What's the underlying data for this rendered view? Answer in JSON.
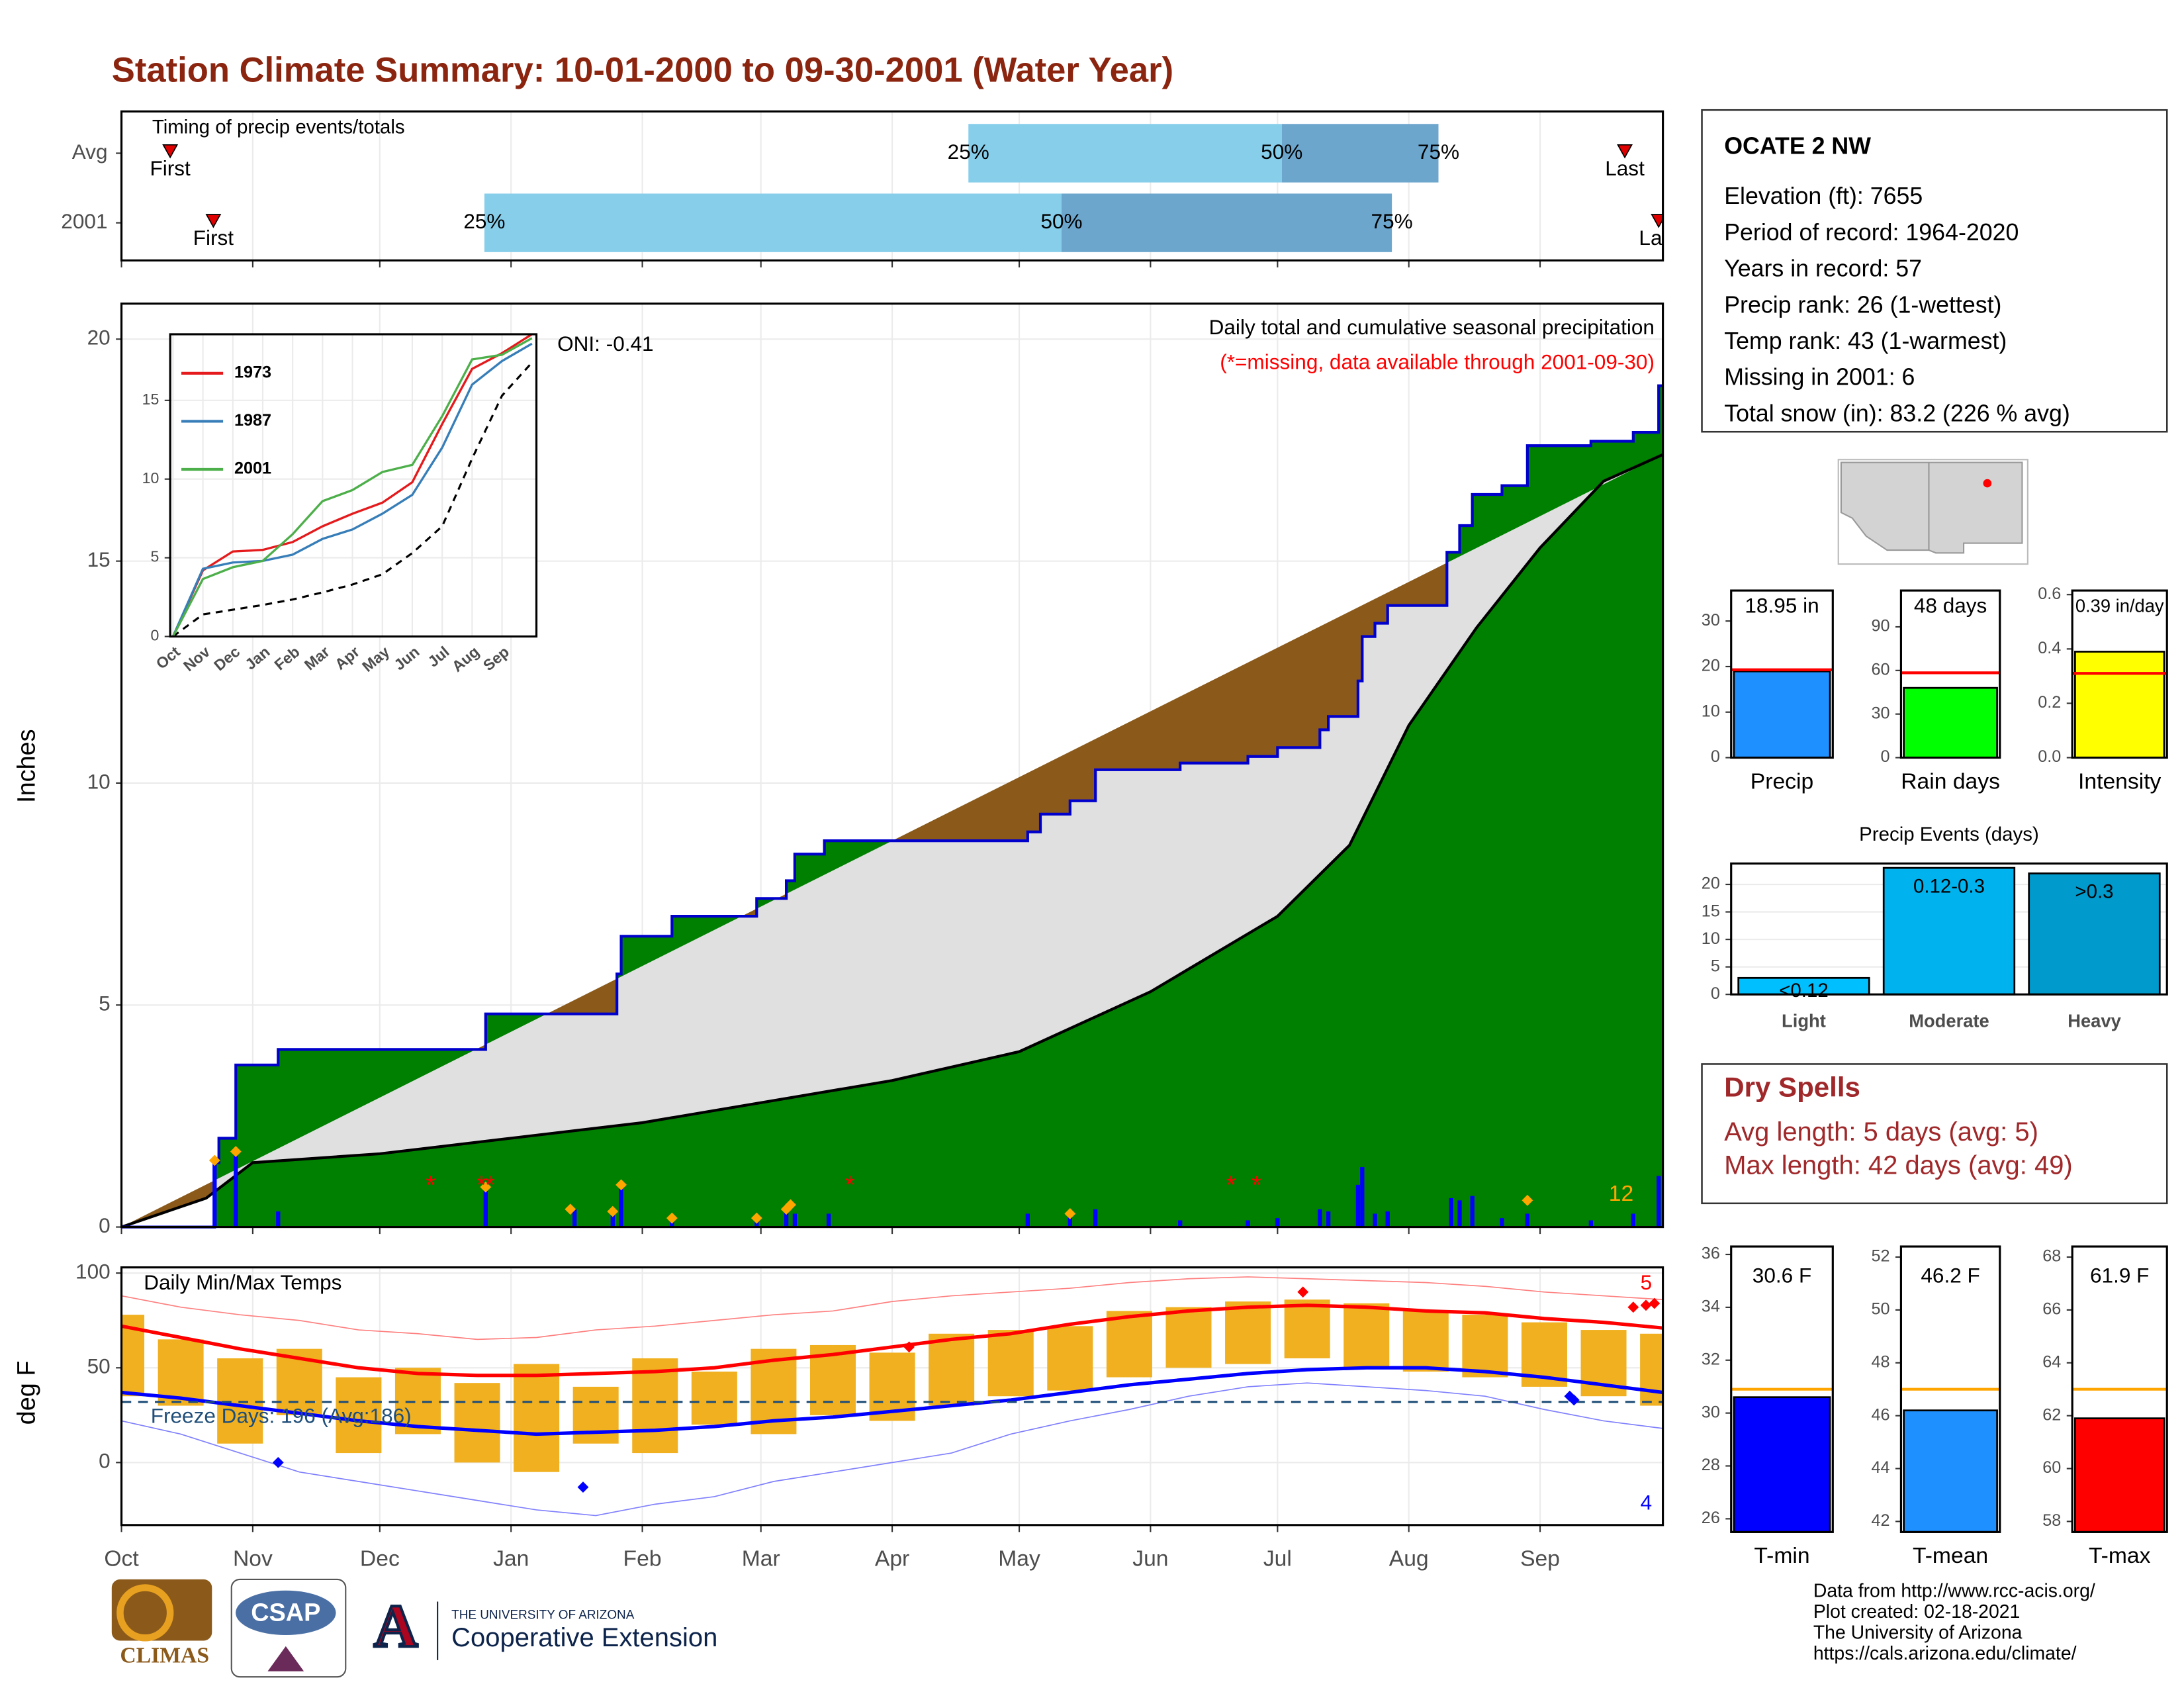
{
  "title": "Station Climate Summary: 10-01-2000 to 09-30-2001 (Water Year)",
  "station": {
    "name": "OCATE 2 NW",
    "lines": [
      "Elevation (ft): 7655",
      "Period of record: 1964-2020",
      "Years in record: 57",
      "Precip rank: 26 (1-wettest)",
      "Temp rank: 43 (1-warmest)",
      "Missing in 2001: 6",
      "Total snow (in): 83.2 (226 % avg)"
    ]
  },
  "dry_spells": {
    "title": "Dry Spells",
    "lines": [
      "Avg length: 5 days (avg: 5)",
      "Max length: 42 days (avg: 49)"
    ]
  },
  "footer": {
    "lines": [
      "Data from http://www.rcc-acis.org/",
      "Plot created: 02-18-2021",
      "The University of Arizona",
      "https://cals.arizona.edu/climate/"
    ]
  },
  "logos": {
    "climas": "CLIMAS",
    "csap": "CSAP",
    "university": "THE UNIVERSITY OF ARIZONA",
    "extension": "Cooperative Extension"
  },
  "chart_data": [
    {
      "type": "timeline",
      "title": "Timing of precip events/totals",
      "xlim": [
        0,
        364
      ],
      "categories": [
        "Avg",
        "2001"
      ],
      "first": [
        11.5,
        21.7
      ],
      "p25": [
        200,
        85.7
      ],
      "p50": [
        274,
        222
      ],
      "p75": [
        311,
        300
      ],
      "last": [
        355,
        363
      ],
      "labels": {
        "first": "First",
        "last": "Last",
        "p25": "25%",
        "p50": "50%",
        "p75": "75%"
      },
      "colors": {
        "low": "#87ceeb",
        "high": "#6ca6cd",
        "marker": "#e00000"
      }
    },
    {
      "type": "area",
      "title": "Daily total and cumulative seasonal precipitation",
      "subtitle": "(*=missing, data available through 2001-09-30)",
      "annotation": "ONI: -0.41",
      "ylabel": "Inches",
      "xlim": [
        0,
        364
      ],
      "ylim": [
        0,
        20.8
      ],
      "yticks": [
        0,
        5,
        10,
        15,
        20
      ],
      "grid": true,
      "average": {
        "color": "#e0e0e0",
        "deficit_color": "#8b5a1a",
        "x": [
          0,
          20,
          31,
          61,
          92,
          123,
          151,
          182,
          212,
          243,
          273,
          290,
          304,
          320,
          335,
          350,
          364
        ],
        "values": [
          0,
          0.65,
          1.45,
          1.65,
          2.0,
          2.35,
          2.8,
          3.3,
          3.95,
          5.3,
          7.0,
          8.6,
          11.3,
          13.5,
          15.3,
          16.8,
          17.4
        ]
      },
      "cumulative": {
        "color": "#008000",
        "line_color": "#0000cd",
        "x": [
          0,
          22,
          23,
          27,
          37,
          86,
          117,
          118,
          130,
          150,
          157,
          159,
          166,
          214,
          217,
          224,
          230,
          250,
          266,
          273,
          283,
          285,
          292,
          293,
          296,
          299,
          313,
          316,
          319,
          326,
          332,
          347,
          357,
          363
        ],
        "values": [
          0,
          1.45,
          2.0,
          3.65,
          4.0,
          4.8,
          5.7,
          6.55,
          7.0,
          7.4,
          7.8,
          8.4,
          8.7,
          8.9,
          9.3,
          9.6,
          10.3,
          10.45,
          10.6,
          10.8,
          11.2,
          11.5,
          12.3,
          13.3,
          13.6,
          14.0,
          15.2,
          15.8,
          16.5,
          16.7,
          17.6,
          17.7,
          17.9,
          18.95
        ]
      },
      "daily": {
        "color": "#0000ff",
        "x": [
          22,
          27,
          37,
          86,
          107,
          116,
          118,
          130,
          150,
          157,
          159,
          167,
          214,
          224,
          230,
          250,
          266,
          273,
          283,
          285,
          292,
          293,
          296,
          299,
          314,
          316,
          319,
          326,
          332,
          347,
          357,
          363
        ],
        "values": [
          1.45,
          1.65,
          0.35,
          0.95,
          0.4,
          0.35,
          0.95,
          0.25,
          0.2,
          0.4,
          0.3,
          0.3,
          0.3,
          0.3,
          0.4,
          0.15,
          0.15,
          0.2,
          0.4,
          0.35,
          0.95,
          1.35,
          0.3,
          0.35,
          0.65,
          0.6,
          0.7,
          0.2,
          0.3,
          0.15,
          0.3,
          1.15
        ]
      },
      "snow": {
        "color": "#ffa500",
        "count": 12,
        "x": [
          22,
          27,
          86,
          106,
          116,
          118,
          130,
          150,
          157,
          158,
          224,
          332
        ],
        "values": [
          1.5,
          1.7,
          0.9,
          0.4,
          0.35,
          0.95,
          0.2,
          0.2,
          0.4,
          0.5,
          0.3,
          0.6
        ]
      },
      "missing": {
        "color": "#ff0000",
        "symbol": "*",
        "x": [
          73,
          85,
          87,
          172,
          262,
          268
        ]
      }
    },
    {
      "type": "line",
      "xlim": [
        0,
        12.15
      ],
      "ylim": [
        0,
        19.2
      ],
      "yticks": [
        0,
        5,
        10,
        15
      ],
      "grid": true,
      "categories": [
        "Oct",
        "Nov",
        "Dec",
        "Jan",
        "Feb",
        "Mar",
        "Apr",
        "May",
        "Jun",
        "Jul",
        "Aug",
        "Sep"
      ],
      "x": [
        0,
        1,
        2,
        3,
        4,
        5,
        6,
        7,
        8,
        9,
        10,
        11,
        12
      ],
      "series": [
        {
          "name": "1973",
          "color": "#e41a1c",
          "values": [
            0,
            4.2,
            5.4,
            5.5,
            6.0,
            7.0,
            7.8,
            8.5,
            9.8,
            13.5,
            17.0,
            18.0,
            19.2
          ]
        },
        {
          "name": "1987",
          "color": "#377eb8",
          "values": [
            0,
            4.3,
            4.7,
            4.8,
            5.2,
            6.2,
            6.8,
            7.8,
            9.0,
            12.0,
            16.0,
            17.5,
            18.6
          ]
        },
        {
          "name": "2001",
          "color": "#4daf4a",
          "values": [
            0,
            3.65,
            4.4,
            4.8,
            6.5,
            8.6,
            9.3,
            10.45,
            10.9,
            14.0,
            17.6,
            17.9,
            18.95
          ]
        }
      ],
      "average": {
        "color": "#000000",
        "values": [
          0,
          1.4,
          1.7,
          2.0,
          2.35,
          2.8,
          3.3,
          3.95,
          5.3,
          7.0,
          11.3,
          15.3,
          17.4
        ]
      }
    },
    {
      "type": "bar",
      "categories": [
        "Precip"
      ],
      "values": [
        18.95
      ],
      "value_labels": [
        "18.95 in"
      ],
      "average": [
        19.3
      ],
      "average_color": "#ff0000",
      "color": "#1e90ff",
      "ylim": [
        0,
        36.7
      ],
      "yticks": [
        0,
        10,
        20,
        30
      ]
    },
    {
      "type": "bar",
      "categories": [
        "Rain days"
      ],
      "values": [
        48
      ],
      "value_labels": [
        "48 days"
      ],
      "average": [
        58.4
      ],
      "average_color": "#ff0000",
      "color": "#00ff00",
      "ylim": [
        0,
        115
      ],
      "yticks": [
        0,
        30,
        60,
        90
      ]
    },
    {
      "type": "bar",
      "categories": [
        "Intensity"
      ],
      "values": [
        0.39
      ],
      "value_labels": [
        "0.39 in/day"
      ],
      "average": [
        0.31
      ],
      "average_color": "#ff0000",
      "color": "#ffff00",
      "ylim": [
        0,
        0.615
      ],
      "yticks": [
        {
          "value": 0,
          "label": "0.0"
        },
        0.2,
        0.4,
        0.6
      ]
    },
    {
      "type": "bar",
      "title": "Precip Events (days)",
      "categories": [
        "Light",
        "Moderate",
        "Heavy"
      ],
      "values": [
        3,
        23,
        22
      ],
      "bar_labels": [
        "<0.12",
        "0.12-0.3",
        ">0.3"
      ],
      "colors": [
        "#00bfff",
        "#00b2ee",
        "#009acd"
      ],
      "ylim": [
        0,
        23.8
      ],
      "yticks": [
        0,
        5,
        10,
        15,
        20
      ],
      "grid": true
    },
    {
      "type": "range",
      "title": "Daily Min/Max Temps",
      "ylabel": "deg F",
      "xlim": [
        0,
        364
      ],
      "ylim": [
        -33,
        103
      ],
      "yticks": [
        0,
        50,
        100
      ],
      "grid": true,
      "xticks": [
        {
          "value": 0,
          "label": "Oct"
        },
        {
          "value": 31,
          "label": "Nov"
        },
        {
          "value": 61,
          "label": "Dec"
        },
        {
          "value": 92,
          "label": "Jan"
        },
        {
          "value": 123,
          "label": "Feb"
        },
        {
          "value": 151,
          "label": "Mar"
        },
        {
          "value": 182,
          "label": "Apr"
        },
        {
          "value": 212,
          "label": "May"
        },
        {
          "value": 243,
          "label": "Jun"
        },
        {
          "value": 273,
          "label": "Jul"
        },
        {
          "value": 304,
          "label": "Aug"
        },
        {
          "value": 335,
          "label": "Sep"
        }
      ],
      "x": [
        0,
        14,
        28,
        42,
        56,
        70,
        84,
        98,
        112,
        126,
        140,
        154,
        168,
        182,
        196,
        210,
        224,
        238,
        252,
        266,
        280,
        294,
        308,
        322,
        336,
        350,
        364
      ],
      "observed": {
        "color": "#f0b020",
        "max": [
          78,
          65,
          55,
          60,
          45,
          50,
          42,
          52,
          40,
          55,
          48,
          60,
          62,
          58,
          68,
          70,
          72,
          80,
          82,
          85,
          86,
          84,
          80,
          78,
          74,
          70,
          68
        ],
        "min": [
          35,
          30,
          10,
          25,
          5,
          15,
          0,
          -5,
          10,
          5,
          20,
          15,
          25,
          22,
          30,
          35,
          38,
          45,
          50,
          52,
          55,
          50,
          48,
          45,
          40,
          35,
          30
        ]
      },
      "normal_max": {
        "color": "#ff0000",
        "values": [
          72,
          66,
          60,
          55,
          50,
          47,
          46,
          46,
          47,
          48,
          50,
          54,
          57,
          61,
          65,
          68,
          73,
          77,
          80,
          82,
          83,
          82,
          80,
          79,
          76,
          74,
          71
        ]
      },
      "normal_min": {
        "color": "#0000ff",
        "values": [
          37,
          34,
          30,
          26,
          22,
          19,
          17,
          15,
          16,
          17,
          19,
          22,
          24,
          27,
          30,
          33,
          37,
          41,
          44,
          47,
          49,
          50,
          50,
          48,
          45,
          41,
          37
        ]
      },
      "record_max": {
        "color": "#ff8080",
        "values": [
          88,
          82,
          78,
          75,
          70,
          68,
          65,
          66,
          70,
          72,
          75,
          78,
          80,
          85,
          88,
          90,
          92,
          95,
          97,
          98,
          97,
          96,
          95,
          93,
          90,
          88,
          86
        ]
      },
      "record_min": {
        "color": "#8080ff",
        "values": [
          22,
          15,
          5,
          -5,
          -10,
          -15,
          -20,
          -25,
          -28,
          -22,
          -18,
          -10,
          -5,
          0,
          5,
          15,
          22,
          28,
          35,
          40,
          42,
          40,
          38,
          35,
          28,
          22,
          18
        ]
      },
      "freeze": {
        "value": 32,
        "label": "Freeze Days: 196 (Avg:186)",
        "color": "#1f4e79"
      },
      "records_high": {
        "color": "#ff0000",
        "count": 5,
        "x": [
          186,
          279,
          357,
          360,
          362
        ],
        "values": [
          61,
          90,
          82,
          83,
          84
        ]
      },
      "records_low": {
        "color": "#0000ff",
        "count": 4,
        "x": [
          37,
          109,
          342,
          343
        ],
        "values": [
          0,
          -13,
          35,
          33
        ]
      }
    },
    {
      "type": "bar",
      "categories": [
        "T-min"
      ],
      "values": [
        30.6
      ],
      "value_labels": [
        "30.6 F"
      ],
      "average": [
        30.9
      ],
      "average_color": "#ffa500",
      "color": "#0000ff",
      "ylim": [
        25.5,
        36.3
      ],
      "yticks": [
        26,
        28,
        30,
        32,
        34,
        36
      ]
    },
    {
      "type": "bar",
      "categories": [
        "T-mean"
      ],
      "values": [
        46.2
      ],
      "value_labels": [
        "46.2 F"
      ],
      "average": [
        47.0
      ],
      "average_color": "#ffa500",
      "color": "#1e90ff",
      "ylim": [
        41.6,
        52.4
      ],
      "yticks": [
        42,
        44,
        46,
        48,
        50,
        52
      ]
    },
    {
      "type": "bar",
      "categories": [
        "T-max"
      ],
      "values": [
        61.9
      ],
      "value_labels": [
        "61.9 F"
      ],
      "average": [
        63.0
      ],
      "average_color": "#ffa500",
      "color": "#ff0000",
      "ylim": [
        57.6,
        68.4
      ],
      "yticks": [
        58,
        60,
        62,
        64,
        66,
        68
      ]
    }
  ]
}
